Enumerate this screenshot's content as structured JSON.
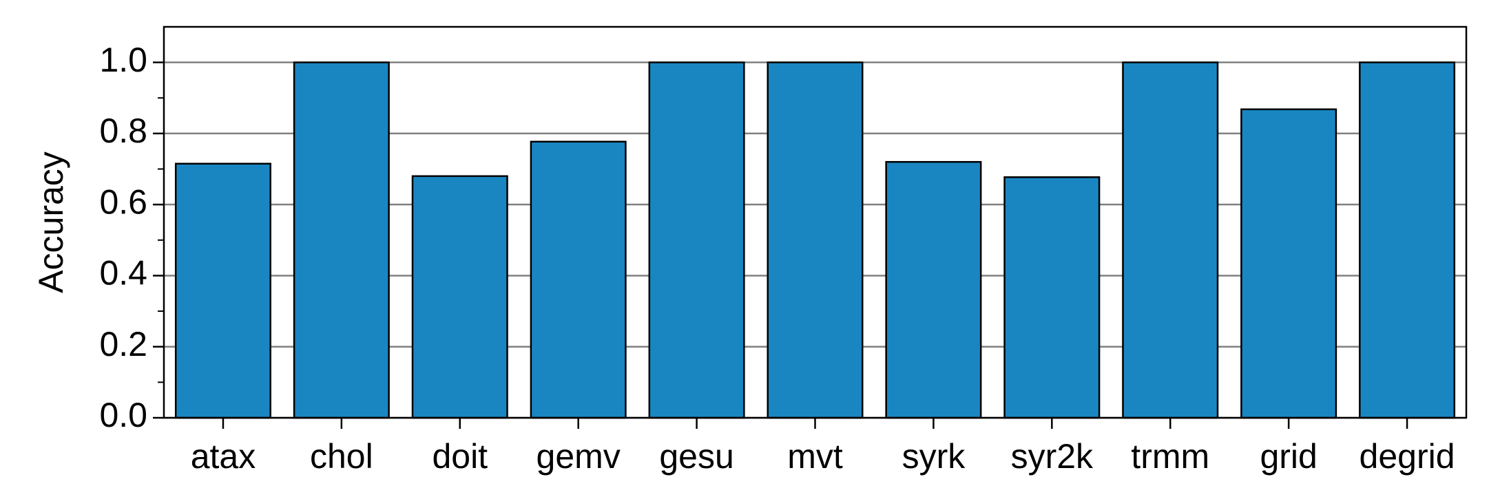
{
  "chart_data": {
    "type": "bar",
    "ylabel": "Accuracy",
    "categories": [
      "atax",
      "chol",
      "doit",
      "gemv",
      "gesu",
      "mvt",
      "syrk",
      "syr2k",
      "trmm",
      "grid",
      "degrid"
    ],
    "values": [
      0.715,
      1.0,
      0.68,
      0.777,
      1.0,
      1.0,
      0.72,
      0.677,
      1.0,
      0.868,
      1.0
    ],
    "color": "#1a86c1",
    "ylim": [
      0,
      1.1
    ],
    "yticks": [
      {
        "value": 0,
        "label": "0.0"
      },
      0.2,
      0.4,
      0.6,
      0.8,
      {
        "value": 1,
        "label": "1.0"
      }
    ],
    "minor_yticks": [
      0.1,
      0.3,
      0.5,
      0.7,
      0.9
    ],
    "grid": true
  }
}
